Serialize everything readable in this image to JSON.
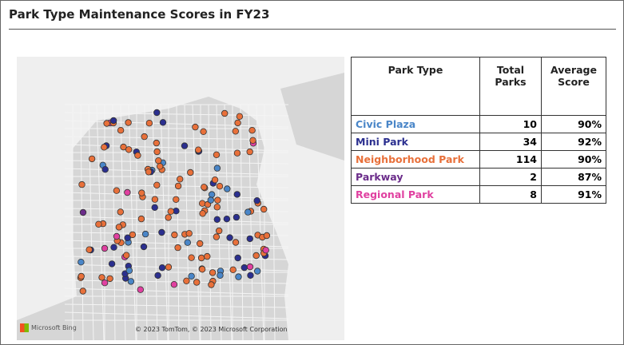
{
  "header": {
    "title": "Park Type Maintenance Scores in FY23"
  },
  "map": {
    "logo": "Microsoft Bing",
    "attribution": "© 2023 TomTom, © 2023 Microsoft Corporation"
  },
  "table": {
    "columns": [
      "Park Type",
      "Total Parks",
      "Average Score"
    ],
    "rows": [
      [
        "Civic Plaza",
        "10",
        "90%"
      ],
      [
        "Mini Park",
        "34",
        "92%"
      ],
      [
        "Neighborhood Park",
        "114",
        "90%"
      ],
      [
        "Parkway",
        "2",
        "87%"
      ],
      [
        "Regional Park",
        "8",
        "91%"
      ]
    ]
  }
}
